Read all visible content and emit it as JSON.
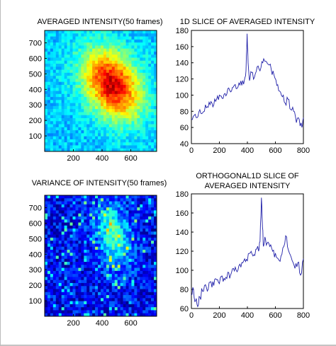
{
  "colors": {
    "frame": "#000000",
    "line": "#1f1fa8",
    "jet": [
      "#00008f",
      "#0000ff",
      "#00ffff",
      "#ffff00",
      "#ff0000",
      "#800000"
    ]
  },
  "chart_data": [
    {
      "type": "heatmap",
      "title": "AVERAGED INTENSITY(50 frames)",
      "colormap": "jet",
      "xlim": [
        0,
        780
      ],
      "ylim": [
        0,
        780
      ],
      "xticks": [
        200,
        400,
        600
      ],
      "yticks": [
        100,
        200,
        300,
        400,
        500,
        600,
        700
      ],
      "grid": false,
      "description_values": {
        "peak_center": [
          470,
          430
        ],
        "background_level": 0.32,
        "peak_level": 0.92
      }
    },
    {
      "type": "line",
      "title": "1D SLICE OF AVERAGED INTENSITY",
      "xlim": [
        0,
        800
      ],
      "ylim": [
        40,
        180
      ],
      "xticks": [
        0,
        200,
        400,
        600,
        800
      ],
      "yticks": [
        40,
        60,
        80,
        100,
        120,
        140,
        160,
        180
      ],
      "grid": false,
      "series": [
        {
          "x": [
            0,
            20,
            40,
            60,
            80,
            100,
            120,
            140,
            160,
            180,
            200,
            220,
            240,
            260,
            280,
            300,
            320,
            340,
            360,
            380,
            390,
            398,
            405,
            415,
            430,
            450,
            470,
            490,
            510,
            530,
            550,
            570,
            590,
            610,
            630,
            650,
            670,
            690,
            710,
            730,
            750,
            770,
            790,
            800
          ],
          "y": [
            70,
            75,
            72,
            82,
            78,
            88,
            85,
            92,
            88,
            95,
            100,
            96,
            102,
            108,
            104,
            110,
            108,
            115,
            112,
            120,
            130,
            176,
            140,
            118,
            128,
            122,
            135,
            130,
            140,
            142,
            138,
            132,
            125,
            112,
            105,
            98,
            90,
            95,
            82,
            80,
            66,
            70,
            60,
            72
          ]
        }
      ]
    },
    {
      "type": "heatmap",
      "title": "VARIANCE OF INTENSITY(50 frames)",
      "colormap": "jet",
      "xlim": [
        0,
        780
      ],
      "ylim": [
        0,
        780
      ],
      "xticks": [
        200,
        400,
        600
      ],
      "yticks": [
        100,
        200,
        300,
        400,
        500,
        600,
        700
      ],
      "grid": false,
      "description_values": {
        "peak_center": [
          480,
          520
        ],
        "background_level": 0.12,
        "peak_level": 0.45
      }
    },
    {
      "type": "line",
      "title": "ORTHOGONAL1D SLICE OF AVERAGED INTENSITY",
      "title_lines": [
        "ORTHOGONAL1D SLICE OF",
        "AVERAGED INTENSITY"
      ],
      "xlim": [
        0,
        800
      ],
      "ylim": [
        60,
        180
      ],
      "xticks": [
        0,
        200,
        400,
        600,
        800
      ],
      "yticks": [
        60,
        80,
        100,
        120,
        140,
        160,
        180
      ],
      "grid": false,
      "series": [
        {
          "x": [
            0,
            15,
            30,
            45,
            60,
            80,
            100,
            120,
            140,
            160,
            180,
            200,
            220,
            240,
            260,
            280,
            300,
            320,
            340,
            360,
            380,
            400,
            420,
            440,
            460,
            480,
            490,
            500,
            508,
            515,
            525,
            540,
            560,
            580,
            600,
            620,
            640,
            660,
            680,
            700,
            720,
            740,
            760,
            780,
            800
          ],
          "y": [
            74,
            80,
            68,
            62,
            72,
            78,
            85,
            80,
            88,
            84,
            90,
            86,
            94,
            90,
            98,
            95,
            102,
            100,
            105,
            108,
            112,
            110,
            118,
            115,
            122,
            120,
            130,
            176,
            145,
            125,
            135,
            128,
            125,
            120,
            118,
            112,
            115,
            125,
            135,
            118,
            110,
            102,
            108,
            95,
            112
          ]
        }
      ]
    }
  ]
}
